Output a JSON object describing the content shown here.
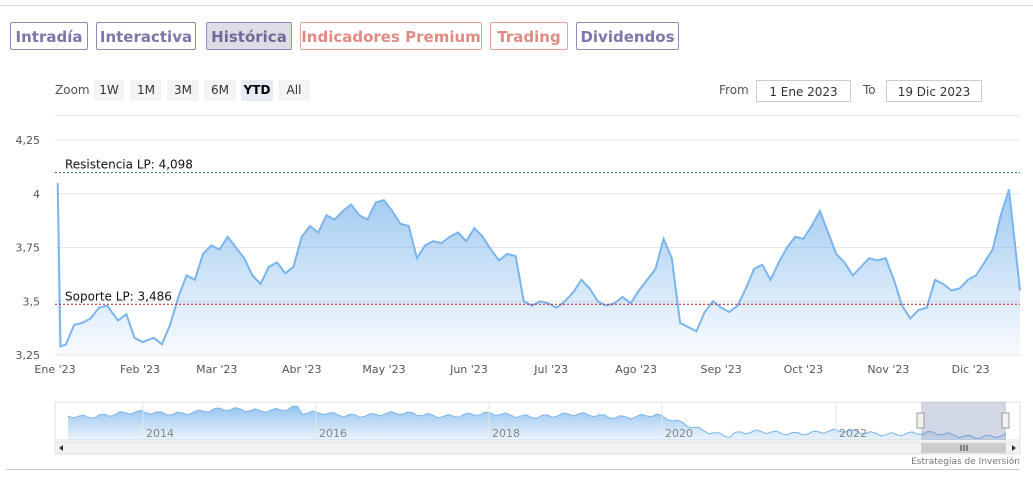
{
  "tabs": [
    {
      "label": "Intradía",
      "style": "normal"
    },
    {
      "label": "Interactiva",
      "style": "normal"
    },
    {
      "label": "Histórica",
      "style": "active"
    },
    {
      "label": "Indicadores Premium",
      "style": "premium"
    },
    {
      "label": "Trading",
      "style": "premium"
    },
    {
      "label": "Dividendos",
      "style": "normal"
    }
  ],
  "range_selector": {
    "zoom_label": "Zoom",
    "buttons": [
      "1W",
      "1M",
      "3M",
      "6M",
      "YTD",
      "All"
    ],
    "selected": "YTD",
    "from_label": "From",
    "from_value": "1 Ene 2023",
    "to_label": "To",
    "to_value": "19 Dic 2023"
  },
  "credit": "Estrategias de Inversión",
  "colors": {
    "line": "#7cb5ec",
    "tab_border": "#8e8bb8",
    "premium": "#df8c84"
  },
  "chart_data": {
    "type": "area",
    "x_axis_type": "date",
    "ylim": [
      3.25,
      4.25
    ],
    "y_ticks": [
      "3,25",
      "3,5",
      "3,75",
      "4",
      "4,25"
    ],
    "x_ticks": [
      "Ene '23",
      "Feb '23",
      "Mar '23",
      "Abr '23",
      "May '23",
      "Jun '23",
      "Jul '23",
      "Ago '23",
      "Sep '23",
      "Oct '23",
      "Nov '23",
      "Dic '23"
    ],
    "grid": true,
    "legend": "none",
    "reference_lines": [
      {
        "label": "Resistencia LP: 4,098",
        "value": 4.098
      },
      {
        "label": "Soporte LP: 3,486",
        "value": 3.486
      }
    ],
    "series": [
      {
        "x": [
          "2023-01-02",
          "2023-01-03",
          "2023-01-05",
          "2023-01-08",
          "2023-01-11",
          "2023-01-14",
          "2023-01-17",
          "2023-01-20",
          "2023-01-24",
          "2023-01-27",
          "2023-01-30",
          "2023-02-02",
          "2023-02-06",
          "2023-02-09",
          "2023-02-12",
          "2023-02-15",
          "2023-02-18",
          "2023-02-21",
          "2023-02-24",
          "2023-02-27",
          "2023-03-02",
          "2023-03-05",
          "2023-03-08",
          "2023-03-11",
          "2023-03-14",
          "2023-03-17",
          "2023-03-20",
          "2023-03-23",
          "2023-03-26",
          "2023-03-29",
          "2023-04-01",
          "2023-04-04",
          "2023-04-07",
          "2023-04-10",
          "2023-04-13",
          "2023-04-16",
          "2023-04-19",
          "2023-04-22",
          "2023-04-25",
          "2023-04-28",
          "2023-05-01",
          "2023-05-04",
          "2023-05-07",
          "2023-05-10",
          "2023-05-13",
          "2023-05-16",
          "2023-05-19",
          "2023-05-22",
          "2023-05-25",
          "2023-05-28",
          "2023-05-31",
          "2023-06-03",
          "2023-06-06",
          "2023-06-09",
          "2023-06-12",
          "2023-06-15",
          "2023-06-18",
          "2023-06-21",
          "2023-06-24",
          "2023-06-27",
          "2023-06-30",
          "2023-07-03",
          "2023-07-06",
          "2023-07-09",
          "2023-07-12",
          "2023-07-15",
          "2023-07-18",
          "2023-07-21",
          "2023-07-24",
          "2023-07-27",
          "2023-07-30",
          "2023-08-02",
          "2023-08-05",
          "2023-08-08",
          "2023-08-11",
          "2023-08-14",
          "2023-08-17",
          "2023-08-20",
          "2023-08-23",
          "2023-08-26",
          "2023-08-29",
          "2023-09-01",
          "2023-09-04",
          "2023-09-07",
          "2023-09-10",
          "2023-09-13",
          "2023-09-16",
          "2023-09-19",
          "2023-09-22",
          "2023-09-25",
          "2023-09-28",
          "2023-10-01",
          "2023-10-04",
          "2023-10-07",
          "2023-10-10",
          "2023-10-13",
          "2023-10-16",
          "2023-10-19",
          "2023-10-22",
          "2023-10-25",
          "2023-10-28",
          "2023-10-31",
          "2023-11-03",
          "2023-11-06",
          "2023-11-09",
          "2023-11-12",
          "2023-11-15",
          "2023-11-18",
          "2023-11-21",
          "2023-11-24",
          "2023-11-27",
          "2023-11-30",
          "2023-12-03",
          "2023-12-06",
          "2023-12-09",
          "2023-12-12",
          "2023-12-15",
          "2023-12-19"
        ],
        "y": [
          4.05,
          3.29,
          3.3,
          3.39,
          3.4,
          3.42,
          3.47,
          3.48,
          3.41,
          3.44,
          3.33,
          3.31,
          3.33,
          3.3,
          3.39,
          3.52,
          3.62,
          3.6,
          3.72,
          3.76,
          3.74,
          3.8,
          3.75,
          3.7,
          3.62,
          3.58,
          3.66,
          3.68,
          3.63,
          3.66,
          3.8,
          3.85,
          3.82,
          3.9,
          3.88,
          3.92,
          3.95,
          3.9,
          3.88,
          3.96,
          3.97,
          3.92,
          3.86,
          3.85,
          3.7,
          3.76,
          3.78,
          3.77,
          3.8,
          3.82,
          3.78,
          3.84,
          3.8,
          3.74,
          3.69,
          3.72,
          3.71,
          3.5,
          3.48,
          3.5,
          3.49,
          3.47,
          3.5,
          3.54,
          3.6,
          3.56,
          3.5,
          3.48,
          3.49,
          3.52,
          3.49,
          3.55,
          3.6,
          3.65,
          3.79,
          3.7,
          3.4,
          3.38,
          3.36,
          3.45,
          3.5,
          3.47,
          3.45,
          3.48,
          3.56,
          3.65,
          3.67,
          3.6,
          3.68,
          3.75,
          3.8,
          3.79,
          3.85,
          3.92,
          3.82,
          3.72,
          3.68,
          3.62,
          3.66,
          3.7,
          3.69,
          3.7,
          3.6,
          3.48,
          3.42,
          3.46,
          3.47,
          3.6,
          3.58,
          3.55,
          3.56,
          3.6,
          3.62,
          3.68,
          3.74,
          3.9,
          4.02,
          3.55
        ]
      }
    ],
    "navigator": {
      "x_ticks": [
        "2014",
        "2016",
        "2018",
        "2020",
        "2022"
      ]
    }
  }
}
